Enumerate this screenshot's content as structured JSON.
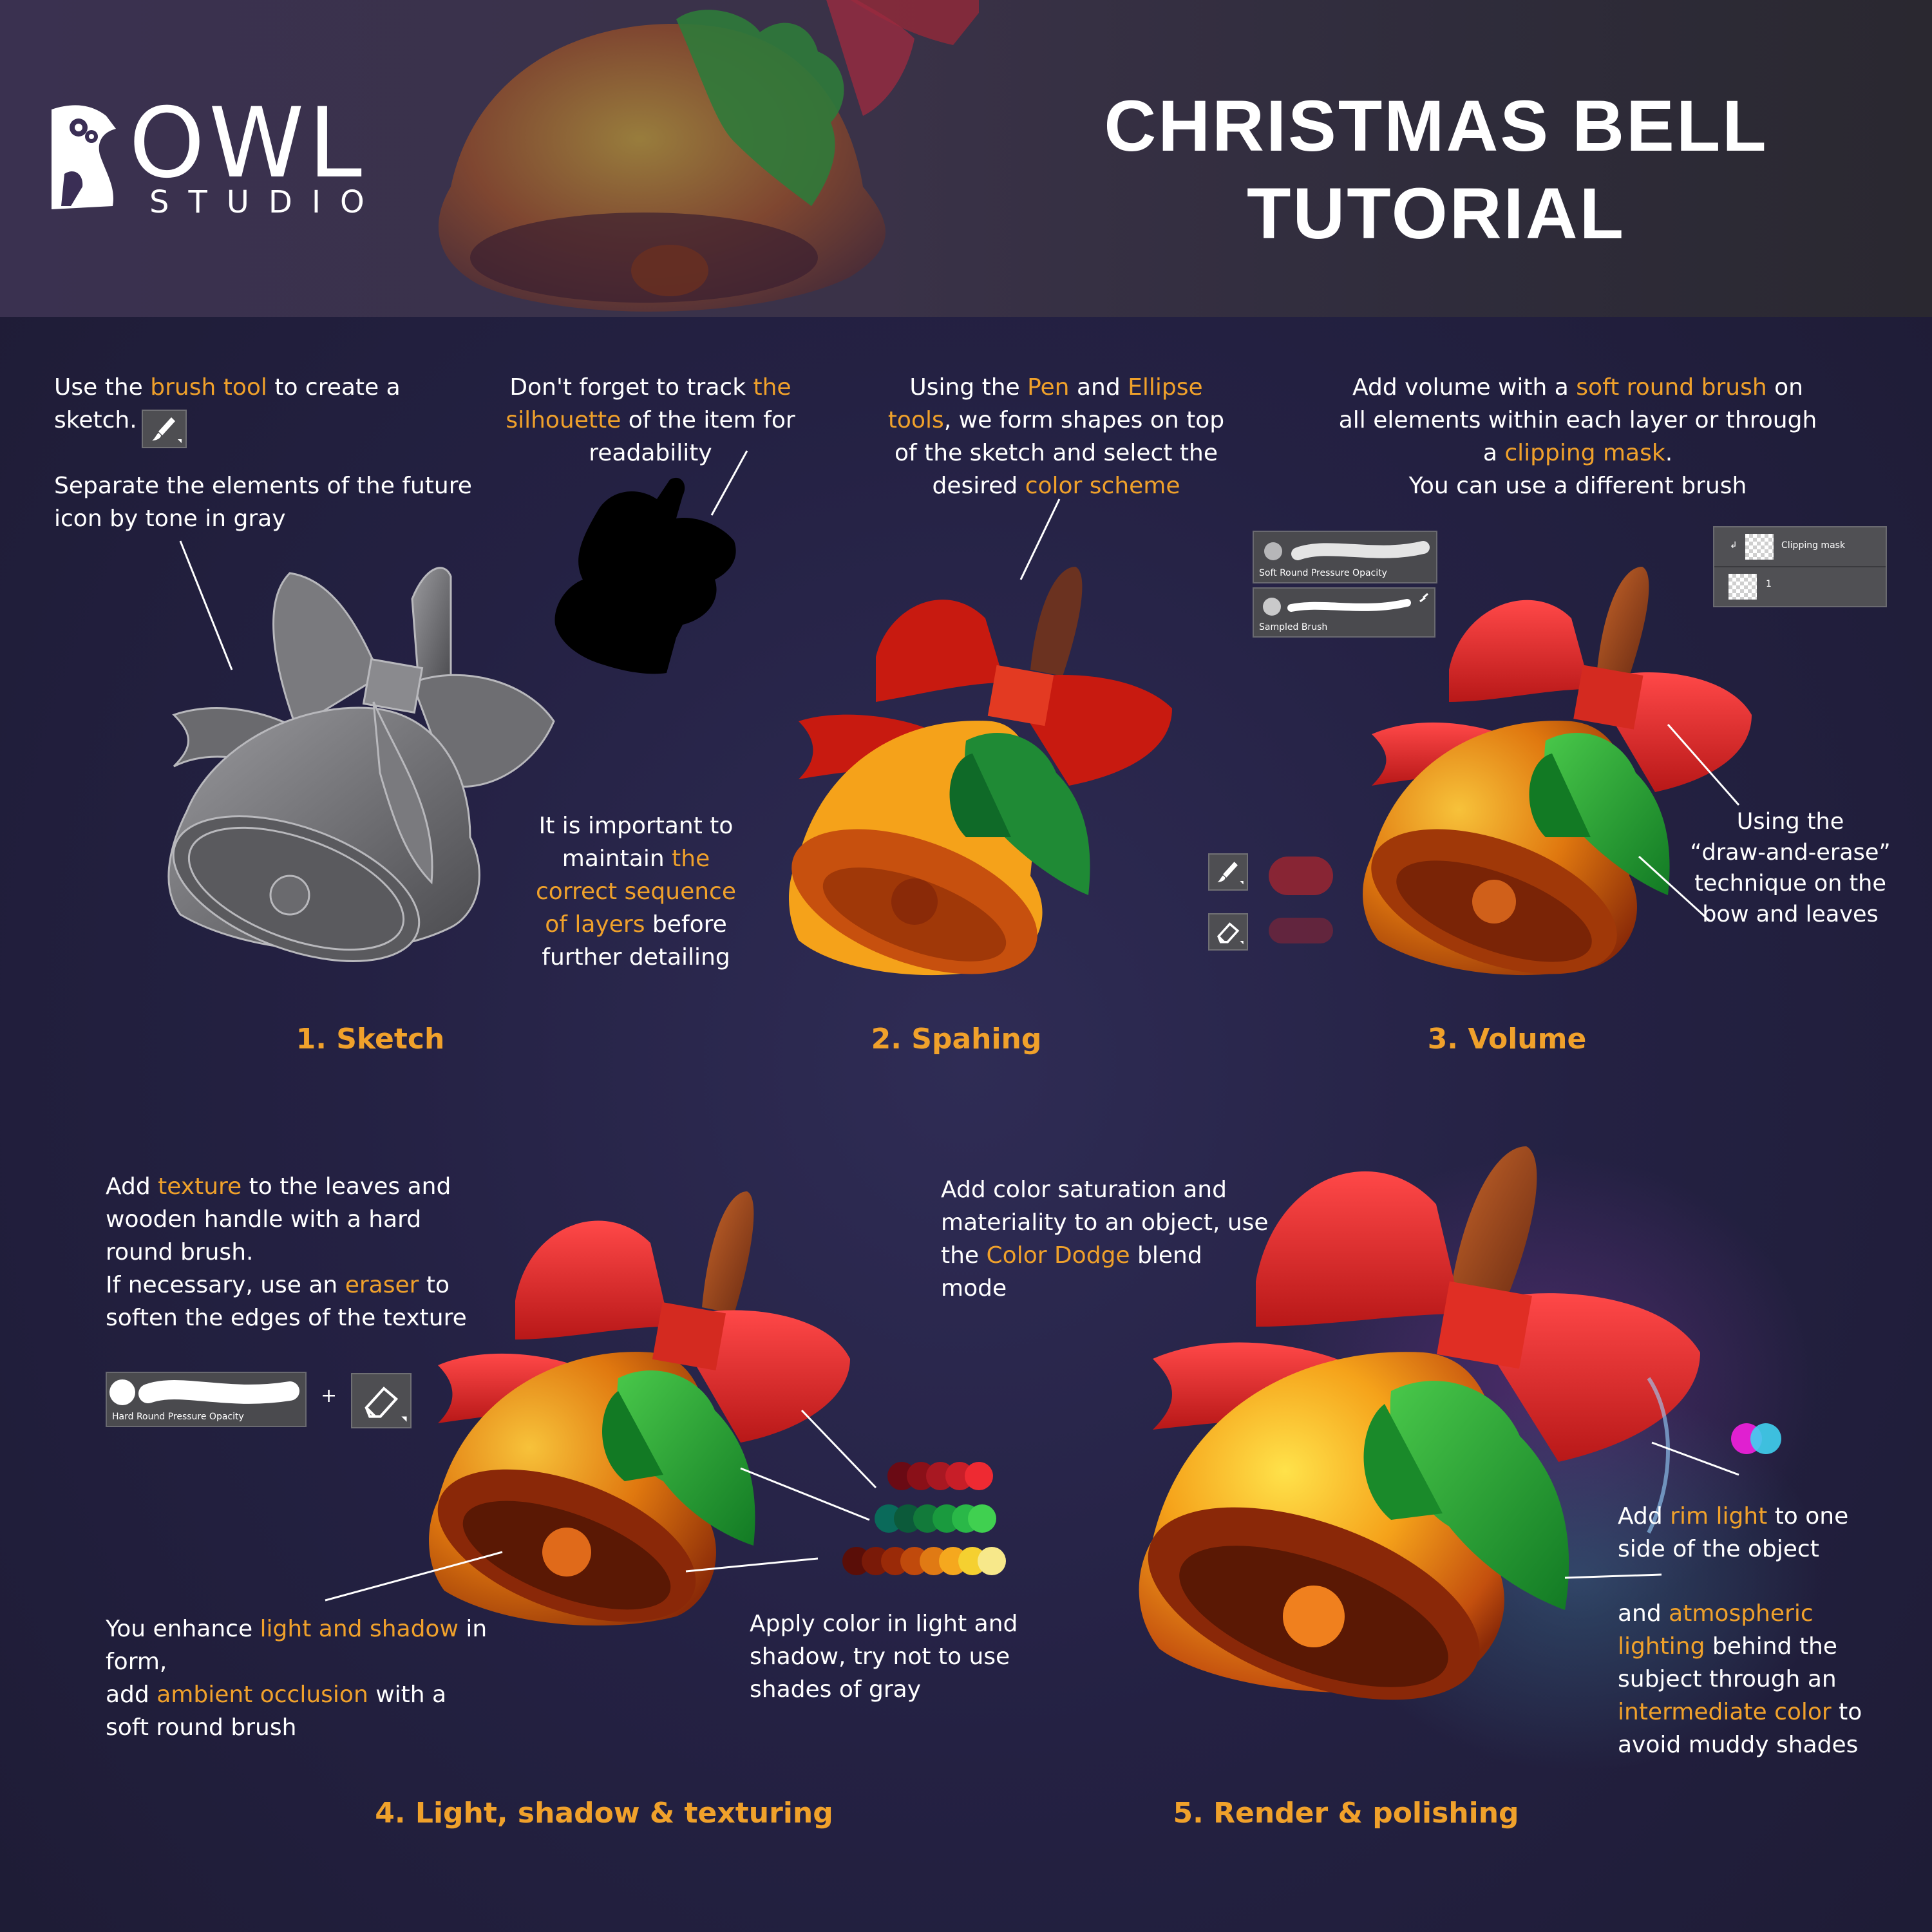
{
  "header": {
    "logo": {
      "word": "OWL",
      "sub": "STUDIO"
    },
    "title_line1": "CHRISTMAS BELL",
    "title_line2": "TUTORIAL"
  },
  "colors": {
    "accent": "#f0a12b",
    "text": "#ffffff",
    "background": "#242143"
  },
  "steps": [
    {
      "label": "1. Sketch"
    },
    {
      "label": "2. Spahing"
    },
    {
      "label": "3. Volume"
    },
    {
      "label": "4. Light, shadow & texturing"
    },
    {
      "label": "5. Render & polishing"
    }
  ],
  "sketch": {
    "t1_a": "Use the ",
    "t1_hl": "brush tool",
    "t1_b": " to create a",
    "t1_c": "sketch.",
    "t2_a": "Separate the elements of the future",
    "t2_b": "icon by tone in gray",
    "brush_icon": "brush-icon"
  },
  "silhouette": {
    "a": "Don't forget to track ",
    "hl1": "the",
    "hl2": "silhouette",
    "b": " of the item for",
    "c": "readability"
  },
  "sequence": {
    "a": "It is important to",
    "b": "maintain ",
    "hl1": "the",
    "hl2": "correct sequence",
    "hl3": "of layers",
    "c": " before",
    "d": "further detailing"
  },
  "shaping": {
    "a": "Using the ",
    "hl1": "Pen",
    "b": " and ",
    "hl2": "Ellipse",
    "hl3": "tools",
    "c": ", we form shapes on top",
    "d": "of the sketch and select the",
    "e": "desired ",
    "hl4": "color scheme"
  },
  "volume": {
    "a": "Add volume with a ",
    "hl1": "soft round brush",
    "b": " on",
    "c": "all elements within each layer or through",
    "d": "a ",
    "hl2": "clipping mask",
    "e": ".",
    "f": "You can use a different brush",
    "brush1": "Soft Round Pressure Opacity",
    "brush2": "Sampled Brush",
    "layer1": "Clipping mask",
    "layer2": "1",
    "technique_a": "Using the",
    "technique_b": "“draw-and-erase”",
    "technique_c": "technique on the",
    "technique_d": "bow and leaves"
  },
  "texture": {
    "a": "Add ",
    "hl1": "texture",
    "b": " to the leaves and",
    "c": "wooden handle with a hard",
    "d": "round brush.",
    "e": "If necessary, use an ",
    "hl2": "eraser",
    "f": " to",
    "g": "soften the edges of the texture",
    "brush": "Hard Round Pressure Opacity",
    "plus": "+"
  },
  "light": {
    "a": "You enhance ",
    "hl1": "light and shadow",
    "b": " in",
    "c": "form,",
    "d": "add ",
    "hl2": "ambient occlusion",
    "e": " with a",
    "f": "soft round brush"
  },
  "apply": {
    "a": "Apply color in light and",
    "b": "shadow, try not to use",
    "c": "shades of gray"
  },
  "saturation": {
    "a": "Add color saturation and",
    "b": "materiality to an object, use",
    "c": "the ",
    "hl1": "Color Dodge",
    "d": " blend",
    "e": "mode"
  },
  "rim": {
    "a": "Add ",
    "hl1": "rim light",
    "b": " to one",
    "c": "side of the object",
    "d": "and ",
    "hl2": "atmospheric",
    "hl3": "lighting",
    "e": " behind the",
    "f": "subject through an",
    "hl4": "intermediate color",
    "g": " to",
    "h": "avoid muddy shades"
  }
}
